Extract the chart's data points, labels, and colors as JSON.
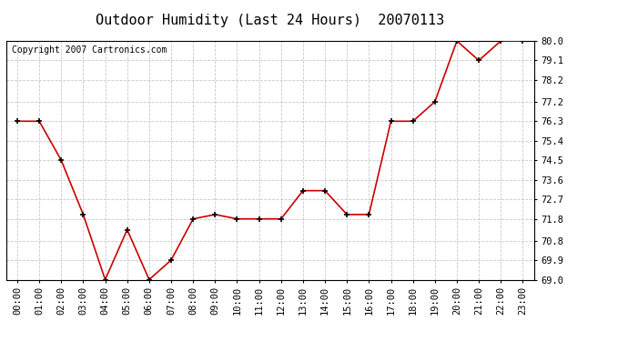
{
  "title": "Outdoor Humidity (Last 24 Hours)  20070113",
  "copyright": "Copyright 2007 Cartronics.com",
  "x_labels": [
    "00:00",
    "01:00",
    "02:00",
    "03:00",
    "04:00",
    "05:00",
    "06:00",
    "07:00",
    "08:00",
    "09:00",
    "10:00",
    "11:00",
    "12:00",
    "13:00",
    "14:00",
    "15:00",
    "16:00",
    "17:00",
    "18:00",
    "19:00",
    "20:00",
    "21:00",
    "22:00",
    "23:00"
  ],
  "y_values": [
    76.3,
    76.3,
    74.5,
    72.0,
    69.0,
    71.3,
    69.0,
    69.9,
    71.8,
    72.0,
    71.8,
    71.8,
    71.8,
    73.1,
    73.1,
    72.0,
    72.0,
    76.3,
    76.3,
    77.2,
    80.0,
    79.1,
    80.0,
    80.0
  ],
  "ylim_min": 69.0,
  "ylim_max": 80.0,
  "yticks": [
    69.0,
    69.9,
    70.8,
    71.8,
    72.7,
    73.6,
    74.5,
    75.4,
    76.3,
    77.2,
    78.2,
    79.1,
    80.0
  ],
  "line_color": "#cc0000",
  "marker_color": "#000000",
  "bg_color": "#ffffff",
  "plot_bg_color": "#ffffff",
  "grid_color": "#c8c8c8",
  "title_fontsize": 11,
  "tick_fontsize": 7.5,
  "copyright_fontsize": 7
}
